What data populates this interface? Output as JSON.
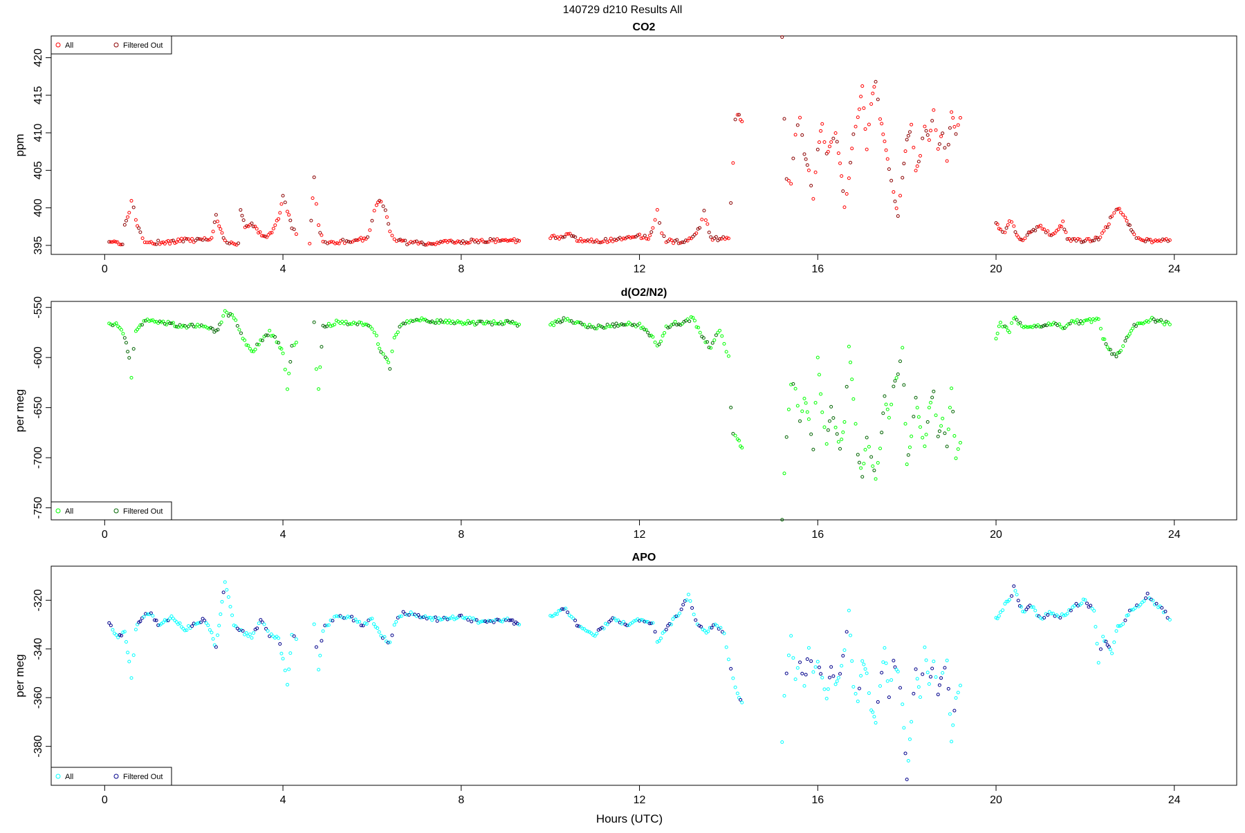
{
  "figure": {
    "title": "140729   d210   Results All",
    "xlabel": "Hours (UTC)"
  },
  "chart_data": [
    {
      "type": "scatter",
      "title": "CO2",
      "ylabel": "ppm",
      "xlim": [
        -1.2,
        25.4
      ],
      "ylim": [
        393.8,
        422.9
      ],
      "x_ticks": [
        0,
        4,
        8,
        12,
        16,
        20,
        24
      ],
      "y_ticks": [
        395,
        400,
        405,
        410,
        415,
        420
      ],
      "legend": {
        "position": "top-left",
        "entries": [
          "All",
          "Filtered Out"
        ]
      },
      "series": [
        {
          "name": "All",
          "color": "#ff0000"
        },
        {
          "name": "Filtered Out",
          "color": "#8b0000"
        }
      ],
      "segments": [
        {
          "x": [
            0.1,
            0.4,
            0.45,
            0.55,
            0.6,
            0.65,
            0.7,
            0.8,
            0.9,
            1.0,
            1.2,
            1.5,
            1.8,
            2.0,
            2.2,
            2.4,
            2.5,
            2.6,
            2.7,
            2.8,
            3.0,
            3.05,
            3.15,
            3.3,
            3.45,
            3.6,
            3.75,
            3.9,
            4.0,
            4.1,
            4.2,
            4.3
          ],
          "y": [
            395.3,
            395.3,
            397.5,
            399.5,
            400.9,
            400.3,
            398.5,
            396.5,
            395.6,
            395.4,
            395.4,
            395.4,
            395.8,
            395.6,
            395.8,
            396.0,
            398.9,
            397.0,
            395.5,
            395.4,
            395.3,
            399.8,
            397.5,
            398.0,
            396.8,
            396.2,
            396.8,
            398.5,
            401.5,
            399.5,
            397.5,
            396.5
          ]
        },
        {
          "x": [
            4.6,
            4.7,
            4.8,
            4.9,
            5.0,
            5.3,
            5.6,
            5.9,
            6.0,
            6.1,
            6.2,
            6.3,
            6.4,
            6.5,
            6.6,
            6.7,
            7.0,
            7.5,
            8.0,
            8.5,
            9.0,
            9.3
          ],
          "y": [
            395.4,
            404.0,
            397.5,
            395.6,
            395.3,
            395.5,
            395.6,
            396.0,
            398.5,
            400.5,
            401.0,
            399.5,
            397.0,
            396.0,
            395.6,
            395.4,
            395.3,
            395.3,
            395.5,
            395.6,
            395.7,
            395.6
          ]
        },
        {
          "x": [
            10.0,
            10.2,
            10.4,
            10.6,
            10.8,
            11.2,
            11.6,
            12.0,
            12.2,
            12.3,
            12.4,
            12.5,
            12.6,
            12.8,
            13.0,
            13.2,
            13.35,
            13.45,
            13.6,
            13.8,
            14.0,
            14.05,
            14.1,
            14.15,
            14.2,
            14.3
          ],
          "y": [
            396.2,
            396.0,
            396.5,
            395.8,
            395.6,
            395.6,
            395.8,
            396.2,
            396.0,
            397.5,
            399.5,
            396.5,
            395.6,
            395.5,
            395.5,
            396.0,
            397.5,
            399.5,
            396.0,
            395.8,
            396.0,
            400.5,
            406.0,
            412.0,
            412.5,
            411.5
          ]
        },
        {
          "x": [
            15.2,
            15.25,
            15.3,
            15.4,
            15.5,
            15.6,
            15.7,
            15.8,
            15.9,
            16.0,
            16.1,
            16.2,
            16.3,
            16.4,
            16.5,
            16.6,
            16.7,
            16.8,
            16.9,
            17.0,
            17.1,
            17.2,
            17.3,
            17.4,
            17.5,
            17.6,
            17.7,
            17.8,
            17.9,
            18.0,
            18.1,
            18.2,
            18.3,
            18.4,
            18.5,
            18.6,
            18.7,
            18.8,
            18.9,
            19.0,
            19.1,
            19.2
          ],
          "y": [
            422.5,
            412.0,
            404.0,
            403.0,
            410.0,
            412.0,
            407.0,
            405.0,
            401.0,
            408.0,
            411.0,
            407.0,
            409.0,
            410.0,
            406.0,
            400.0,
            404.0,
            410.0,
            412.0,
            416.0,
            408.0,
            414.0,
            417.0,
            412.0,
            409.0,
            405.0,
            402.0,
            399.0,
            404.0,
            409.0,
            411.0,
            405.0,
            407.0,
            411.0,
            409.0,
            413.0,
            408.0,
            410.0,
            406.0,
            413.0,
            410.0,
            412.0
          ]
        },
        {
          "x": [
            20.0,
            20.1,
            20.2,
            20.3,
            20.4,
            20.5,
            20.6,
            20.7,
            20.8,
            21.0,
            21.2,
            21.4,
            21.5,
            21.6,
            21.8,
            22.0,
            22.2,
            22.3,
            22.5,
            22.6,
            22.7,
            22.8,
            22.9,
            23.0,
            23.1,
            23.2,
            23.5,
            23.9
          ],
          "y": [
            398.0,
            397.0,
            396.5,
            398.5,
            397.5,
            396.0,
            395.8,
            396.5,
            397.0,
            397.5,
            396.5,
            397.0,
            398.0,
            396.0,
            395.6,
            395.7,
            395.8,
            396.0,
            397.5,
            399.0,
            400.0,
            399.5,
            398.5,
            397.5,
            396.5,
            395.8,
            395.6,
            395.7
          ]
        }
      ]
    },
    {
      "type": "scatter",
      "title": "d(O2/N2)",
      "ylabel": "per meg",
      "xlim": [
        -1.2,
        25.4
      ],
      "ylim": [
        -762,
        -544
      ],
      "x_ticks": [
        0,
        4,
        8,
        12,
        16,
        20,
        24
      ],
      "y_ticks": [
        -550,
        -600,
        -650,
        -700,
        -750
      ],
      "legend": {
        "position": "bottom-left",
        "entries": [
          "All",
          "Filtered Out"
        ]
      },
      "series": [
        {
          "name": "All",
          "color": "#00ff00"
        },
        {
          "name": "Filtered Out",
          "color": "#006400"
        }
      ],
      "segments": [
        {
          "x": [
            0.1,
            0.3,
            0.45,
            0.55,
            0.6,
            0.65,
            0.7,
            0.8,
            1.0,
            1.2,
            1.5,
            1.8,
            2.0,
            2.3,
            2.5,
            2.7,
            2.9,
            3.1,
            3.3,
            3.5,
            3.7,
            3.9,
            4.0,
            4.1,
            4.2,
            4.3
          ],
          "y": [
            -565,
            -568,
            -580,
            -600,
            -620,
            -590,
            -575,
            -567,
            -562,
            -565,
            -566,
            -570,
            -568,
            -570,
            -575,
            -555,
            -560,
            -580,
            -595,
            -583,
            -575,
            -585,
            -595,
            -630,
            -590,
            -585
          ]
        },
        {
          "x": [
            4.7,
            4.75,
            4.8,
            4.9,
            5.2,
            5.5,
            5.8,
            6.0,
            6.1,
            6.2,
            6.3,
            6.4,
            6.5,
            6.7,
            7.0,
            7.5,
            8.0,
            8.5,
            9.0,
            9.3
          ],
          "y": [
            -565,
            -610,
            -632,
            -570,
            -565,
            -566,
            -566,
            -570,
            -580,
            -595,
            -600,
            -610,
            -580,
            -565,
            -562,
            -564,
            -565,
            -566,
            -565,
            -567
          ]
        },
        {
          "x": [
            10.0,
            10.3,
            10.6,
            11.0,
            11.4,
            11.8,
            12.0,
            12.3,
            12.4,
            12.6,
            12.8,
            13.0,
            13.2,
            13.4,
            13.6,
            13.8,
            13.9,
            14.0,
            14.05,
            14.1,
            14.2,
            14.3
          ],
          "y": [
            -568,
            -562,
            -566,
            -570,
            -568,
            -566,
            -568,
            -580,
            -590,
            -570,
            -566,
            -566,
            -560,
            -580,
            -590,
            -572,
            -585,
            -600,
            -650,
            -675,
            -680,
            -690
          ]
        },
        {
          "x": [
            15.2,
            15.25,
            15.3,
            15.4,
            15.5,
            15.6,
            15.7,
            15.8,
            15.9,
            16.0,
            16.1,
            16.2,
            16.3,
            16.4,
            16.5,
            16.6,
            16.7,
            16.8,
            16.9,
            17.0,
            17.1,
            17.2,
            17.3,
            17.4,
            17.5,
            17.6,
            17.7,
            17.8,
            17.9,
            18.0,
            18.1,
            18.2,
            18.3,
            18.4,
            18.5,
            18.6,
            18.7,
            18.8,
            18.9,
            19.0,
            19.1,
            19.2
          ],
          "y": [
            -760,
            -715,
            -680,
            -625,
            -630,
            -665,
            -640,
            -660,
            -690,
            -600,
            -655,
            -685,
            -650,
            -670,
            -690,
            -665,
            -590,
            -640,
            -695,
            -720,
            -680,
            -700,
            -720,
            -690,
            -640,
            -660,
            -630,
            -615,
            -590,
            -705,
            -680,
            -640,
            -670,
            -690,
            -650,
            -635,
            -680,
            -660,
            -690,
            -630,
            -700,
            -685
          ]
        },
        {
          "x": [
            20.0,
            20.1,
            20.2,
            20.3,
            20.4,
            20.5,
            20.7,
            20.9,
            21.1,
            21.3,
            21.5,
            21.7,
            21.9,
            22.1,
            22.3,
            22.4,
            22.5,
            22.6,
            22.7,
            22.8,
            22.9,
            23.0,
            23.1,
            23.3,
            23.5,
            23.7,
            23.9
          ],
          "y": [
            -580,
            -565,
            -570,
            -575,
            -560,
            -565,
            -570,
            -568,
            -567,
            -565,
            -570,
            -563,
            -565,
            -563,
            -562,
            -580,
            -590,
            -595,
            -600,
            -592,
            -585,
            -575,
            -568,
            -565,
            -562,
            -564,
            -567
          ]
        }
      ]
    },
    {
      "type": "scatter",
      "title": "APO",
      "ylabel": "per meg",
      "xlim": [
        -1.2,
        25.4
      ],
      "ylim": [
        -396,
        -306
      ],
      "x_ticks": [
        0,
        4,
        8,
        12,
        16,
        20,
        24
      ],
      "y_ticks": [
        -320,
        -340,
        -360,
        -380
      ],
      "legend": {
        "position": "bottom-left",
        "entries": [
          "All",
          "Filtered Out"
        ]
      },
      "series": [
        {
          "name": "All",
          "color": "#00ffff"
        },
        {
          "name": "Filtered Out",
          "color": "#00008b"
        }
      ],
      "segments": [
        {
          "x": [
            0.1,
            0.3,
            0.45,
            0.55,
            0.6,
            0.7,
            0.8,
            1.0,
            1.2,
            1.5,
            1.8,
            2.0,
            2.2,
            2.4,
            2.5,
            2.6,
            2.7,
            2.9,
            3.1,
            3.3,
            3.5,
            3.7,
            3.9,
            4.0,
            4.1,
            4.2,
            4.3
          ],
          "y": [
            -330,
            -335,
            -333,
            -345,
            -352,
            -332,
            -328,
            -325,
            -330,
            -327,
            -332,
            -330,
            -328,
            -333,
            -340,
            -325,
            -312,
            -330,
            -333,
            -335,
            -328,
            -334,
            -336,
            -344,
            -355,
            -334,
            -336
          ]
        },
        {
          "x": [
            4.7,
            4.8,
            4.9,
            5.2,
            5.5,
            5.8,
            6.0,
            6.2,
            6.4,
            6.5,
            6.7,
            7.0,
            7.5,
            8.0,
            8.5,
            9.0,
            9.3
          ],
          "y": [
            -330,
            -348,
            -332,
            -326,
            -327,
            -330,
            -328,
            -334,
            -338,
            -330,
            -325,
            -326,
            -328,
            -327,
            -329,
            -328,
            -330
          ]
        },
        {
          "x": [
            10.0,
            10.3,
            10.6,
            11.0,
            11.4,
            11.8,
            12.0,
            12.3,
            12.4,
            12.6,
            12.9,
            13.1,
            13.3,
            13.5,
            13.7,
            13.9,
            14.0,
            14.1,
            14.2,
            14.3
          ],
          "y": [
            -327,
            -323,
            -330,
            -334,
            -328,
            -330,
            -328,
            -330,
            -337,
            -332,
            -325,
            -318,
            -330,
            -333,
            -330,
            -333,
            -345,
            -352,
            -358,
            -362
          ]
        },
        {
          "x": [
            15.2,
            15.25,
            15.3,
            15.4,
            15.5,
            15.6,
            15.7,
            15.8,
            15.9,
            16.0,
            16.1,
            16.2,
            16.3,
            16.4,
            16.5,
            16.6,
            16.7,
            16.8,
            16.9,
            17.0,
            17.1,
            17.2,
            17.3,
            17.4,
            17.5,
            17.6,
            17.7,
            17.8,
            17.9,
            18.0,
            18.1,
            18.2,
            18.3,
            18.4,
            18.5,
            18.6,
            18.7,
            18.8,
            18.9,
            19.0,
            19.1,
            19.2
          ],
          "y": [
            -378,
            -360,
            -350,
            -335,
            -352,
            -345,
            -355,
            -340,
            -350,
            -345,
            -352,
            -360,
            -348,
            -355,
            -350,
            -340,
            -325,
            -355,
            -362,
            -345,
            -350,
            -365,
            -370,
            -355,
            -340,
            -360,
            -345,
            -350,
            -362,
            -393,
            -370,
            -348,
            -360,
            -340,
            -355,
            -345,
            -358,
            -350,
            -345,
            -378,
            -360,
            -355
          ]
        },
        {
          "x": [
            20.0,
            20.1,
            20.2,
            20.3,
            20.4,
            20.5,
            20.6,
            20.8,
            21.0,
            21.2,
            21.4,
            21.6,
            21.8,
            22.0,
            22.2,
            22.3,
            22.4,
            22.5,
            22.6,
            22.7,
            22.8,
            22.9,
            23.0,
            23.2,
            23.4,
            23.6,
            23.8,
            23.9
          ],
          "y": [
            -328,
            -325,
            -322,
            -320,
            -315,
            -320,
            -325,
            -322,
            -328,
            -325,
            -327,
            -325,
            -322,
            -320,
            -325,
            -345,
            -335,
            -338,
            -342,
            -332,
            -330,
            -328,
            -325,
            -322,
            -318,
            -322,
            -325,
            -328
          ]
        }
      ]
    }
  ]
}
